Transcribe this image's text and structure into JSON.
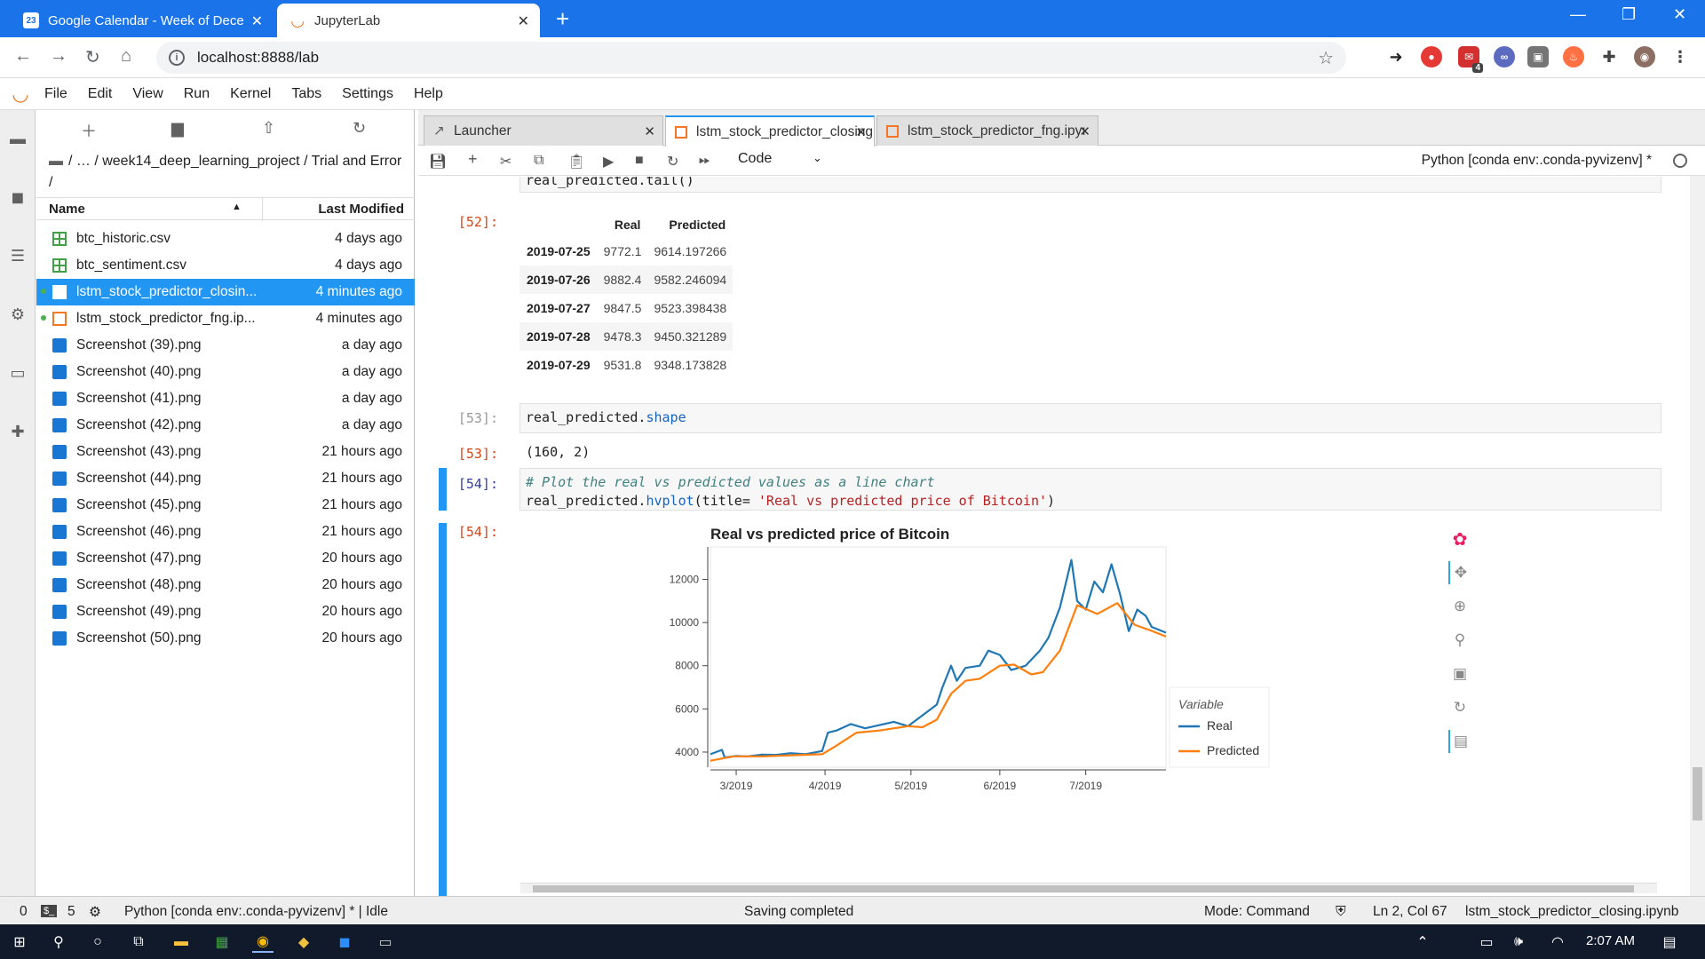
{
  "browser": {
    "tabs": [
      {
        "title": "Google Calendar - Week of Dece",
        "favicon": "calendar-icon"
      },
      {
        "title": "JupyterLab",
        "favicon": "jupyter-icon"
      }
    ],
    "url": "localhost:8888/lab",
    "calendar_badge": "23",
    "ext_badge": "4"
  },
  "menu": [
    "File",
    "Edit",
    "View",
    "Run",
    "Kernel",
    "Tabs",
    "Settings",
    "Help"
  ],
  "filebrowser": {
    "breadcrumb": "/ … / week14_deep_learning_project / Trial and Error /",
    "columns": {
      "name": "Name",
      "modified": "Last Modified"
    },
    "files": [
      {
        "name": "btc_historic.csv",
        "modified": "4 days ago",
        "type": "csv",
        "selected": false,
        "running": false
      },
      {
        "name": "btc_sentiment.csv",
        "modified": "4 days ago",
        "type": "csv",
        "selected": false,
        "running": false
      },
      {
        "name": "lstm_stock_predictor_closin...",
        "modified": "4 minutes ago",
        "type": "notebook",
        "selected": true,
        "running": true
      },
      {
        "name": "lstm_stock_predictor_fng.ip...",
        "modified": "4 minutes ago",
        "type": "notebook",
        "selected": false,
        "running": true
      },
      {
        "name": "Screenshot (39).png",
        "modified": "a day ago",
        "type": "image",
        "selected": false,
        "running": false
      },
      {
        "name": "Screenshot (40).png",
        "modified": "a day ago",
        "type": "image",
        "selected": false,
        "running": false
      },
      {
        "name": "Screenshot (41).png",
        "modified": "a day ago",
        "type": "image",
        "selected": false,
        "running": false
      },
      {
        "name": "Screenshot (42).png",
        "modified": "a day ago",
        "type": "image",
        "selected": false,
        "running": false
      },
      {
        "name": "Screenshot (43).png",
        "modified": "21 hours ago",
        "type": "image",
        "selected": false,
        "running": false
      },
      {
        "name": "Screenshot (44).png",
        "modified": "21 hours ago",
        "type": "image",
        "selected": false,
        "running": false
      },
      {
        "name": "Screenshot (45).png",
        "modified": "21 hours ago",
        "type": "image",
        "selected": false,
        "running": false
      },
      {
        "name": "Screenshot (46).png",
        "modified": "21 hours ago",
        "type": "image",
        "selected": false,
        "running": false
      },
      {
        "name": "Screenshot (47).png",
        "modified": "20 hours ago",
        "type": "image",
        "selected": false,
        "running": false
      },
      {
        "name": "Screenshot (48).png",
        "modified": "20 hours ago",
        "type": "image",
        "selected": false,
        "running": false
      },
      {
        "name": "Screenshot (49).png",
        "modified": "20 hours ago",
        "type": "image",
        "selected": false,
        "running": false
      },
      {
        "name": "Screenshot (50).png",
        "modified": "20 hours ago",
        "type": "image",
        "selected": false,
        "running": false
      }
    ]
  },
  "doc_tabs": [
    {
      "label": "Launcher",
      "active": false
    },
    {
      "label": "lstm_stock_predictor_closing",
      "active": true
    },
    {
      "label": "lstm_stock_predictor_fng.ipyı",
      "active": false
    }
  ],
  "toolbar": {
    "cell_type": "Code",
    "kernel": "Python [conda env:.conda-pyvizenv] *"
  },
  "cells": {
    "c52_prev_code": "real_predicted.tail()",
    "c52_prompt": "[52]:",
    "c52_table": {
      "columns": [
        "Real",
        "Predicted"
      ],
      "rows": [
        {
          "index": "2019-07-25",
          "real": "9772.1",
          "pred": "9614.197266"
        },
        {
          "index": "2019-07-26",
          "real": "9882.4",
          "pred": "9582.246094"
        },
        {
          "index": "2019-07-27",
          "real": "9847.5",
          "pred": "9523.398438"
        },
        {
          "index": "2019-07-28",
          "real": "9478.3",
          "pred": "9450.321289"
        },
        {
          "index": "2019-07-29",
          "real": "9531.8",
          "pred": "9348.173828"
        }
      ]
    },
    "c53_in_prompt": "[53]:",
    "c53_code_obj": "real_predicted.",
    "c53_code_attr": "shape",
    "c53_out_prompt": "[53]:",
    "c53_output": "(160, 2)",
    "c54_in_prompt": "[54]:",
    "c54_comment": "# Plot the real vs predicted values as a line chart",
    "c54_code_a": "real_predicted.",
    "c54_code_b": "hvplot",
    "c54_code_c": "(title= ",
    "c54_code_str": "'Real vs predicted price of Bitcoin'",
    "c54_code_d": ")",
    "c54_out_prompt": "[54]:"
  },
  "chart_data": {
    "type": "line",
    "title": "Real vs predicted price of Bitcoin",
    "xlabel": "",
    "ylabel": "",
    "x_range": [
      "2019-02-20",
      "2019-07-29"
    ],
    "ylim": [
      3300,
      13500
    ],
    "x_ticks": [
      "3/2019",
      "4/2019",
      "5/2019",
      "6/2019",
      "7/2019"
    ],
    "y_ticks": [
      4000,
      6000,
      8000,
      10000,
      12000
    ],
    "grid": false,
    "legend_title": "Variable",
    "legend_position": "bottom-right outside",
    "series": [
      {
        "name": "Real",
        "color": "#1f77b4",
        "points": [
          [
            "2019-02-20",
            3900
          ],
          [
            "2019-02-24",
            4100
          ],
          [
            "2019-02-25",
            3750
          ],
          [
            "2019-03-01",
            3820
          ],
          [
            "2019-03-05",
            3800
          ],
          [
            "2019-03-10",
            3880
          ],
          [
            "2019-03-15",
            3870
          ],
          [
            "2019-03-20",
            3950
          ],
          [
            "2019-03-25",
            3900
          ],
          [
            "2019-03-31",
            4050
          ],
          [
            "2019-04-02",
            4900
          ],
          [
            "2019-04-05",
            5000
          ],
          [
            "2019-04-10",
            5300
          ],
          [
            "2019-04-15",
            5100
          ],
          [
            "2019-04-20",
            5250
          ],
          [
            "2019-04-25",
            5400
          ],
          [
            "2019-04-30",
            5200
          ],
          [
            "2019-05-05",
            5700
          ],
          [
            "2019-05-10",
            6200
          ],
          [
            "2019-05-12",
            7000
          ],
          [
            "2019-05-15",
            8000
          ],
          [
            "2019-05-17",
            7300
          ],
          [
            "2019-05-20",
            7900
          ],
          [
            "2019-05-25",
            8000
          ],
          [
            "2019-05-28",
            8700
          ],
          [
            "2019-06-01",
            8500
          ],
          [
            "2019-06-05",
            7800
          ],
          [
            "2019-06-10",
            8000
          ],
          [
            "2019-06-15",
            8700
          ],
          [
            "2019-06-18",
            9300
          ],
          [
            "2019-06-22",
            10700
          ],
          [
            "2019-06-26",
            12900
          ],
          [
            "2019-06-28",
            11000
          ],
          [
            "2019-07-01",
            10600
          ],
          [
            "2019-07-04",
            11900
          ],
          [
            "2019-07-07",
            11400
          ],
          [
            "2019-07-10",
            12700
          ],
          [
            "2019-07-13",
            11300
          ],
          [
            "2019-07-16",
            9600
          ],
          [
            "2019-07-19",
            10600
          ],
          [
            "2019-07-22",
            10300
          ],
          [
            "2019-07-24",
            9800
          ],
          [
            "2019-07-29",
            9531.8
          ]
        ]
      },
      {
        "name": "Predicted",
        "color": "#ff7f0e",
        "points": [
          [
            "2019-02-20",
            3600
          ],
          [
            "2019-02-28",
            3800
          ],
          [
            "2019-03-10",
            3800
          ],
          [
            "2019-03-20",
            3850
          ],
          [
            "2019-03-31",
            3900
          ],
          [
            "2019-04-05",
            4300
          ],
          [
            "2019-04-12",
            4900
          ],
          [
            "2019-04-20",
            5000
          ],
          [
            "2019-04-30",
            5200
          ],
          [
            "2019-05-05",
            5150
          ],
          [
            "2019-05-10",
            5500
          ],
          [
            "2019-05-15",
            6700
          ],
          [
            "2019-05-20",
            7300
          ],
          [
            "2019-05-25",
            7400
          ],
          [
            "2019-06-01",
            8000
          ],
          [
            "2019-06-06",
            8050
          ],
          [
            "2019-06-12",
            7600
          ],
          [
            "2019-06-16",
            7700
          ],
          [
            "2019-06-22",
            8700
          ],
          [
            "2019-06-28",
            10800
          ],
          [
            "2019-07-05",
            10400
          ],
          [
            "2019-07-12",
            10900
          ],
          [
            "2019-07-18",
            9900
          ],
          [
            "2019-07-24",
            9614.2
          ],
          [
            "2019-07-29",
            9348.2
          ]
        ]
      }
    ]
  },
  "status": {
    "left_count": "0",
    "terminals": "5",
    "kernel_status": "Python [conda env:.conda-pyvizenv] * | Idle",
    "message": "Saving completed",
    "mode": "Mode: Command",
    "position": "Ln 2, Col 67",
    "filename": "lstm_stock_predictor_closing.ipynb"
  },
  "taskbar": {
    "time": "2:07 AM"
  }
}
